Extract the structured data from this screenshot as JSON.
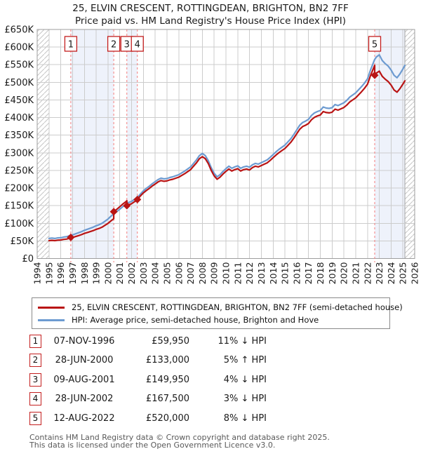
{
  "title": {
    "line1": "25, ELVIN CRESCENT, ROTTINGDEAN, BRIGHTON, BN2 7FF",
    "line2": "Price paid vs. HM Land Registry's House Price Index (HPI)"
  },
  "legend": {
    "series1": "25, ELVIN CRESCENT, ROTTINGDEAN, BRIGHTON, BN2 7FF (semi-detached house)",
    "series2": "HPI: Average price, semi-detached house, Brighton and Hove"
  },
  "footer": {
    "line1": "Contains HM Land Registry data © Crown copyright and database right 2025.",
    "line2": "This data is licensed under the Open Government Licence v3.0."
  },
  "colors": {
    "property": "#b91414",
    "hpi": "#6d9bd1",
    "dashed": "#f47c7c",
    "band": "#eef2fb",
    "grid": "#cccccc",
    "border": "#9e9e9e",
    "hatch": "#c6c6c6",
    "hatch_edge": "#a0a0a0",
    "badge_border": "#c41e1e"
  },
  "chart_data": {
    "type": "line",
    "title": "25, ELVIN CRESCENT, ROTTINGDEAN, BRIGHTON, BN2 7FF — Price paid vs. HPI",
    "xlabel": "",
    "ylabel": "",
    "xlim": [
      1994,
      2026
    ],
    "ylim_k": [
      0,
      650
    ],
    "ytick_step_k": 50,
    "units": "GBP thousands",
    "grid": true,
    "legend_position": "bottom",
    "bands": [
      [
        1996.85,
        2000.49
      ],
      [
        2001.6,
        2002.49
      ],
      [
        2022.61,
        2025.17
      ]
    ],
    "hatch_regions": [
      [
        1994,
        1995
      ],
      [
        2025.17,
        2026
      ]
    ],
    "sales": [
      {
        "label": "1",
        "date": "07-NOV-1996",
        "price_label": "£59,950",
        "price_k": 59.95,
        "x": 1996.85,
        "vs_hpi": "11% ↓ HPI"
      },
      {
        "label": "2",
        "date": "28-JUN-2000",
        "price_label": "£133,000",
        "price_k": 133,
        "x": 2000.49,
        "vs_hpi": "5% ↑ HPI"
      },
      {
        "label": "3",
        "date": "09-AUG-2001",
        "price_label": "£149,950",
        "price_k": 149.95,
        "x": 2001.6,
        "vs_hpi": "4% ↓ HPI"
      },
      {
        "label": "4",
        "date": "28-JUN-2002",
        "price_label": "£167,500",
        "price_k": 167.5,
        "x": 2002.49,
        "vs_hpi": "3% ↓ HPI"
      },
      {
        "label": "5",
        "date": "12-AUG-2022",
        "price_label": "£520,000",
        "price_k": 520,
        "x": 2022.61,
        "vs_hpi": "8% ↓ HPI"
      }
    ],
    "series": [
      {
        "name": "HPI: Average price, semi-detached house, Brighton and Hove",
        "color_key": "hpi",
        "points": [
          [
            1995.0,
            57
          ],
          [
            1995.25,
            58
          ],
          [
            1995.5,
            57
          ],
          [
            1995.75,
            58.5
          ],
          [
            1996.0,
            59
          ],
          [
            1996.25,
            61
          ],
          [
            1996.5,
            62
          ],
          [
            1996.75,
            65
          ],
          [
            1997.0,
            67
          ],
          [
            1997.25,
            70
          ],
          [
            1997.5,
            73
          ],
          [
            1997.75,
            76
          ],
          [
            1998.0,
            80
          ],
          [
            1998.25,
            83
          ],
          [
            1998.5,
            86
          ],
          [
            1998.75,
            89
          ],
          [
            1999.0,
            93
          ],
          [
            1999.25,
            96
          ],
          [
            1999.5,
            100
          ],
          [
            1999.75,
            106
          ],
          [
            2000.0,
            112
          ],
          [
            2000.25,
            120
          ],
          [
            2000.49,
            126.7
          ],
          [
            2000.75,
            133
          ],
          [
            2001.0,
            140
          ],
          [
            2001.25,
            147
          ],
          [
            2001.5,
            153
          ],
          [
            2001.6,
            156.2
          ],
          [
            2001.75,
            159
          ],
          [
            2002.0,
            162
          ],
          [
            2002.25,
            168
          ],
          [
            2002.49,
            172.7
          ],
          [
            2002.75,
            183
          ],
          [
            2003.0,
            192
          ],
          [
            2003.25,
            199
          ],
          [
            2003.5,
            205
          ],
          [
            2003.75,
            212
          ],
          [
            2004.0,
            218
          ],
          [
            2004.25,
            224
          ],
          [
            2004.5,
            228
          ],
          [
            2004.75,
            226
          ],
          [
            2005.0,
            227
          ],
          [
            2005.25,
            230
          ],
          [
            2005.5,
            232
          ],
          [
            2005.75,
            235
          ],
          [
            2006.0,
            238
          ],
          [
            2006.25,
            243
          ],
          [
            2006.5,
            248
          ],
          [
            2006.75,
            254
          ],
          [
            2007.0,
            260
          ],
          [
            2007.25,
            270
          ],
          [
            2007.5,
            280
          ],
          [
            2007.75,
            292
          ],
          [
            2008.0,
            298
          ],
          [
            2008.25,
            292
          ],
          [
            2008.5,
            278
          ],
          [
            2008.75,
            258
          ],
          [
            2009.0,
            242
          ],
          [
            2009.25,
            232
          ],
          [
            2009.5,
            238
          ],
          [
            2009.75,
            247
          ],
          [
            2010.0,
            255
          ],
          [
            2010.25,
            262
          ],
          [
            2010.5,
            256
          ],
          [
            2010.75,
            260
          ],
          [
            2011.0,
            263
          ],
          [
            2011.25,
            256
          ],
          [
            2011.5,
            260
          ],
          [
            2011.75,
            262
          ],
          [
            2012.0,
            259
          ],
          [
            2012.25,
            266
          ],
          [
            2012.5,
            270
          ],
          [
            2012.75,
            268
          ],
          [
            2013.0,
            272
          ],
          [
            2013.25,
            276
          ],
          [
            2013.5,
            280
          ],
          [
            2013.75,
            287
          ],
          [
            2014.0,
            295
          ],
          [
            2014.25,
            303
          ],
          [
            2014.5,
            310
          ],
          [
            2014.75,
            316
          ],
          [
            2015.0,
            322
          ],
          [
            2015.25,
            331
          ],
          [
            2015.5,
            340
          ],
          [
            2015.75,
            352
          ],
          [
            2016.0,
            365
          ],
          [
            2016.25,
            378
          ],
          [
            2016.5,
            386
          ],
          [
            2016.75,
            390
          ],
          [
            2017.0,
            395
          ],
          [
            2017.25,
            406
          ],
          [
            2017.5,
            413
          ],
          [
            2017.75,
            417
          ],
          [
            2018.0,
            420
          ],
          [
            2018.25,
            430
          ],
          [
            2018.5,
            427
          ],
          [
            2018.75,
            426
          ],
          [
            2019.0,
            428
          ],
          [
            2019.25,
            437
          ],
          [
            2019.5,
            434
          ],
          [
            2019.75,
            438
          ],
          [
            2020.0,
            442
          ],
          [
            2020.25,
            449
          ],
          [
            2020.5,
            458
          ],
          [
            2020.75,
            464
          ],
          [
            2021.0,
            470
          ],
          [
            2021.25,
            479
          ],
          [
            2021.5,
            488
          ],
          [
            2021.75,
            498
          ],
          [
            2022.0,
            510
          ],
          [
            2022.25,
            535
          ],
          [
            2022.61,
            565
          ],
          [
            2022.75,
            572
          ],
          [
            2023.0,
            578
          ],
          [
            2023.25,
            562
          ],
          [
            2023.5,
            553
          ],
          [
            2023.75,
            546
          ],
          [
            2024.0,
            535
          ],
          [
            2024.25,
            520
          ],
          [
            2024.5,
            513
          ],
          [
            2024.75,
            524
          ],
          [
            2025.0,
            538
          ],
          [
            2025.17,
            548
          ]
        ]
      },
      {
        "name": "25, ELVIN CRESCENT, ROTTINGDEAN, BRIGHTON, BN2 7FF (semi-detached house)",
        "color_key": "property",
        "points": [
          [
            1995.0,
            50.7
          ],
          [
            1995.25,
            51.6
          ],
          [
            1995.5,
            50.7
          ],
          [
            1995.75,
            52.1
          ],
          [
            1996.0,
            52.5
          ],
          [
            1996.25,
            54.3
          ],
          [
            1996.5,
            55.2
          ],
          [
            1996.75,
            57.9
          ],
          [
            1996.85,
            59.2
          ],
          [
            1997.0,
            59.6
          ],
          [
            1997.25,
            62.3
          ],
          [
            1997.5,
            65
          ],
          [
            1997.75,
            67.6
          ],
          [
            1998.0,
            71.2
          ],
          [
            1998.25,
            73.9
          ],
          [
            1998.5,
            76.5
          ],
          [
            1998.75,
            79.2
          ],
          [
            1999.0,
            82.8
          ],
          [
            1999.25,
            85.4
          ],
          [
            1999.5,
            89
          ],
          [
            1999.75,
            94.3
          ],
          [
            2000.0,
            99.7
          ],
          [
            2000.25,
            106.8
          ],
          [
            2000.49,
            112.8
          ],
          [
            2000.49,
            133
          ],
          [
            2000.75,
            139.7
          ],
          [
            2001.0,
            147
          ],
          [
            2001.25,
            154.4
          ],
          [
            2001.5,
            160.7
          ],
          [
            2001.6,
            164
          ],
          [
            2001.6,
            149.95
          ],
          [
            2001.75,
            152.6
          ],
          [
            2002.0,
            155.5
          ],
          [
            2002.25,
            161.3
          ],
          [
            2002.49,
            165.8
          ],
          [
            2002.49,
            167.5
          ],
          [
            2002.75,
            177.5
          ],
          [
            2003.0,
            186.2
          ],
          [
            2003.25,
            193
          ],
          [
            2003.5,
            198.9
          ],
          [
            2003.75,
            205.6
          ],
          [
            2004.0,
            211.5
          ],
          [
            2004.25,
            217.3
          ],
          [
            2004.5,
            221.2
          ],
          [
            2004.75,
            219.2
          ],
          [
            2005.0,
            220.2
          ],
          [
            2005.25,
            223.1
          ],
          [
            2005.5,
            225
          ],
          [
            2005.75,
            228
          ],
          [
            2006.0,
            230.9
          ],
          [
            2006.25,
            235.7
          ],
          [
            2006.5,
            240.6
          ],
          [
            2006.75,
            246.4
          ],
          [
            2007.0,
            252.2
          ],
          [
            2007.25,
            261.9
          ],
          [
            2007.5,
            271.6
          ],
          [
            2007.75,
            283.2
          ],
          [
            2008.0,
            289.1
          ],
          [
            2008.25,
            283.2
          ],
          [
            2008.5,
            269.7
          ],
          [
            2008.75,
            250.3
          ],
          [
            2009.0,
            234.7
          ],
          [
            2009.25,
            225
          ],
          [
            2009.5,
            230.9
          ],
          [
            2009.75,
            239.6
          ],
          [
            2010.0,
            247.4
          ],
          [
            2010.25,
            254.1
          ],
          [
            2010.5,
            248.3
          ],
          [
            2010.75,
            252.2
          ],
          [
            2011.0,
            255.1
          ],
          [
            2011.25,
            248.3
          ],
          [
            2011.5,
            252.2
          ],
          [
            2011.75,
            254.1
          ],
          [
            2012.0,
            251.2
          ],
          [
            2012.25,
            258
          ],
          [
            2012.5,
            261.9
          ],
          [
            2012.75,
            260
          ],
          [
            2013.0,
            263.8
          ],
          [
            2013.25,
            267.7
          ],
          [
            2013.5,
            271.6
          ],
          [
            2013.75,
            278.4
          ],
          [
            2014.0,
            286.2
          ],
          [
            2014.25,
            293.9
          ],
          [
            2014.5,
            300.7
          ],
          [
            2014.75,
            306.5
          ],
          [
            2015.0,
            312.3
          ],
          [
            2015.25,
            321.1
          ],
          [
            2015.5,
            329.8
          ],
          [
            2015.75,
            341.4
          ],
          [
            2016.0,
            354.1
          ],
          [
            2016.25,
            366.7
          ],
          [
            2016.5,
            374.4
          ],
          [
            2016.75,
            378.3
          ],
          [
            2017.0,
            383.2
          ],
          [
            2017.25,
            393.8
          ],
          [
            2017.5,
            400.6
          ],
          [
            2017.75,
            404.5
          ],
          [
            2018.0,
            407.4
          ],
          [
            2018.25,
            417.1
          ],
          [
            2018.5,
            414.2
          ],
          [
            2018.75,
            413.2
          ],
          [
            2019.0,
            415.2
          ],
          [
            2019.25,
            423.9
          ],
          [
            2019.5,
            421
          ],
          [
            2019.75,
            424.9
          ],
          [
            2020.0,
            428.7
          ],
          [
            2020.25,
            435.5
          ],
          [
            2020.5,
            444.3
          ],
          [
            2020.75,
            450.1
          ],
          [
            2021.0,
            455.9
          ],
          [
            2021.25,
            464.6
          ],
          [
            2021.5,
            473.4
          ],
          [
            2021.75,
            483.1
          ],
          [
            2022.0,
            494.7
          ],
          [
            2022.25,
            519
          ],
          [
            2022.61,
            548
          ],
          [
            2022.61,
            520
          ],
          [
            2022.75,
            526.2
          ],
          [
            2023.0,
            531.8
          ],
          [
            2023.25,
            517
          ],
          [
            2023.5,
            508.8
          ],
          [
            2023.75,
            502.3
          ],
          [
            2024.0,
            492.2
          ],
          [
            2024.25,
            478.4
          ],
          [
            2024.5,
            472
          ],
          [
            2024.75,
            482.1
          ],
          [
            2025.0,
            494.9
          ],
          [
            2025.17,
            504
          ]
        ]
      }
    ]
  }
}
